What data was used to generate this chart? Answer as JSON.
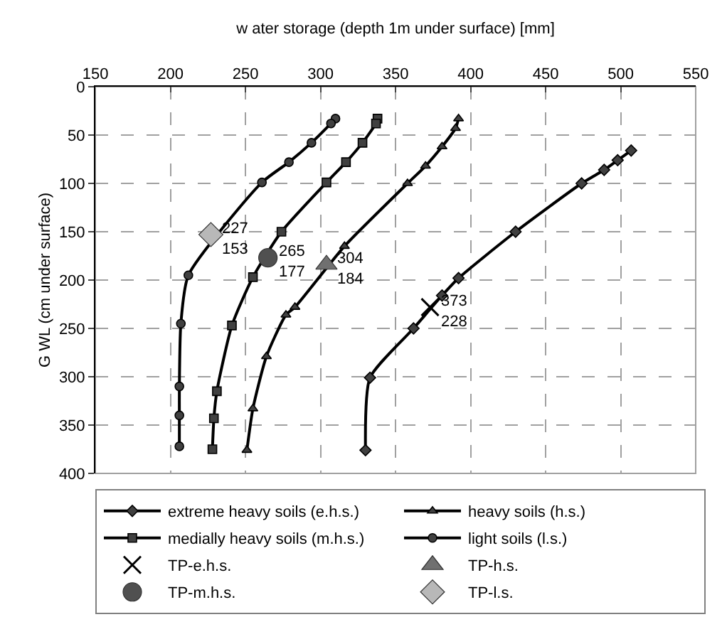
{
  "chart_data": {
    "type": "line",
    "xlabel": "w ater storage (depth 1m under surface) [mm]",
    "ylabel": "G WL (cm under surface)",
    "xlim": [
      150,
      550
    ],
    "xticks": [
      150,
      200,
      250,
      300,
      350,
      400,
      450,
      500,
      550
    ],
    "ylim": [
      400,
      0
    ],
    "yticks": [
      0,
      50,
      100,
      150,
      200,
      250,
      300,
      350,
      400
    ],
    "grid": true,
    "legend": "bottom",
    "line_style": "solid",
    "series": [
      {
        "name": "extreme heavy soils (e.h.s.)",
        "marker": "diamond",
        "color": "#404040",
        "x": [
          507,
          498,
          489,
          474,
          430,
          392,
          381,
          362,
          333,
          330
        ],
        "values": [
          66,
          76,
          86,
          100,
          150,
          198,
          216,
          250,
          301,
          376
        ]
      },
      {
        "name": "heavy soils (h.s.)",
        "marker": "triangle",
        "color": "#404040",
        "x": [
          392,
          390,
          381,
          370,
          358,
          316,
          283,
          277,
          264,
          255,
          251
        ],
        "values": [
          33,
          43,
          62,
          82,
          100,
          165,
          228,
          236,
          279,
          333,
          376
        ]
      },
      {
        "name": "medially heavy soils (m.h.s.)",
        "marker": "square",
        "color": "#404040",
        "x": [
          338,
          337,
          328,
          317,
          304,
          274,
          255,
          241,
          231,
          229,
          228
        ],
        "values": [
          33,
          38,
          58,
          78,
          99,
          150,
          197,
          247,
          315,
          343,
          375
        ]
      },
      {
        "name": "light soils (l.s.)",
        "marker": "circle",
        "color": "#404040",
        "x": [
          310,
          307,
          294,
          279,
          261,
          212,
          207,
          206,
          206,
          206
        ],
        "values": [
          33,
          38,
          58,
          78,
          99,
          195,
          245,
          310,
          340,
          372
        ]
      },
      {
        "name": "TP-e.h.s.",
        "type": "scatter",
        "marker": "cross",
        "color": "#000000",
        "x": [
          373
        ],
        "values": [
          228
        ]
      },
      {
        "name": "TP-h.s.",
        "type": "scatter",
        "marker": "triangle",
        "color": "#707070",
        "x": [
          304
        ],
        "values": [
          184
        ]
      },
      {
        "name": "TP-m.h.s.",
        "type": "scatter",
        "marker": "circle",
        "color": "#505050",
        "x": [
          265
        ],
        "values": [
          177
        ]
      },
      {
        "name": "TP-l.s.",
        "type": "scatter",
        "marker": "diamond",
        "color": "#b8b8b8",
        "x": [
          227
        ],
        "values": [
          153
        ]
      }
    ],
    "annotations": [
      {
        "text": "227\n153",
        "x": 227,
        "y": 153
      },
      {
        "text": "265\n177",
        "x": 265,
        "y": 177
      },
      {
        "text": "304\n184",
        "x": 304,
        "y": 184
      },
      {
        "text": "373\n228",
        "x": 373,
        "y": 228
      }
    ]
  }
}
